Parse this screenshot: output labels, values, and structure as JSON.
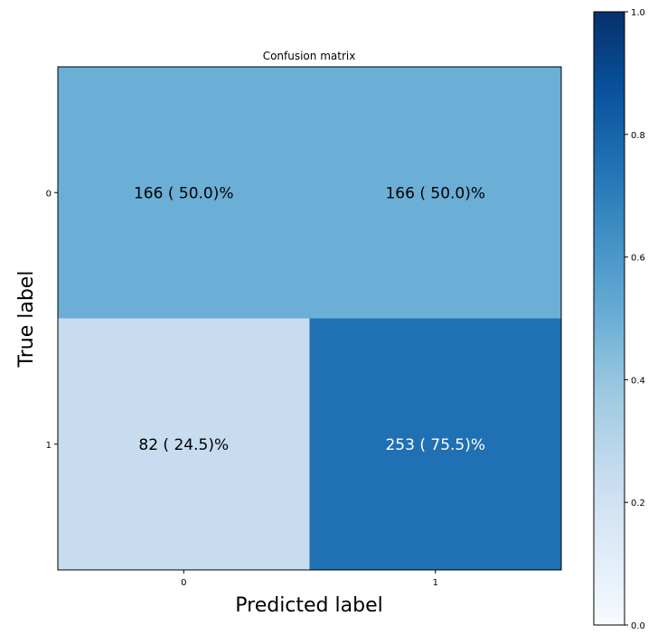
{
  "chart_data": {
    "type": "heatmap",
    "title": "Confusion matrix",
    "xlabel": "Predicted label",
    "ylabel": "True label",
    "x_categories": [
      "0",
      "1"
    ],
    "y_categories": [
      "0",
      "1"
    ],
    "counts": [
      [
        166,
        166
      ],
      [
        82,
        253
      ]
    ],
    "normalized": [
      [
        0.5,
        0.5
      ],
      [
        0.245,
        0.755
      ]
    ],
    "cell_labels": [
      [
        "166 ( 50.0)%",
        "166 ( 50.0)%"
      ],
      [
        "82 ( 24.5)%",
        "253 ( 75.5)%"
      ]
    ],
    "colorbar": {
      "range": [
        0.0,
        1.0
      ],
      "ticks": [
        "0.0",
        "0.2",
        "0.4",
        "0.6",
        "0.8",
        "1.0"
      ],
      "colormap": "Blues"
    }
  }
}
